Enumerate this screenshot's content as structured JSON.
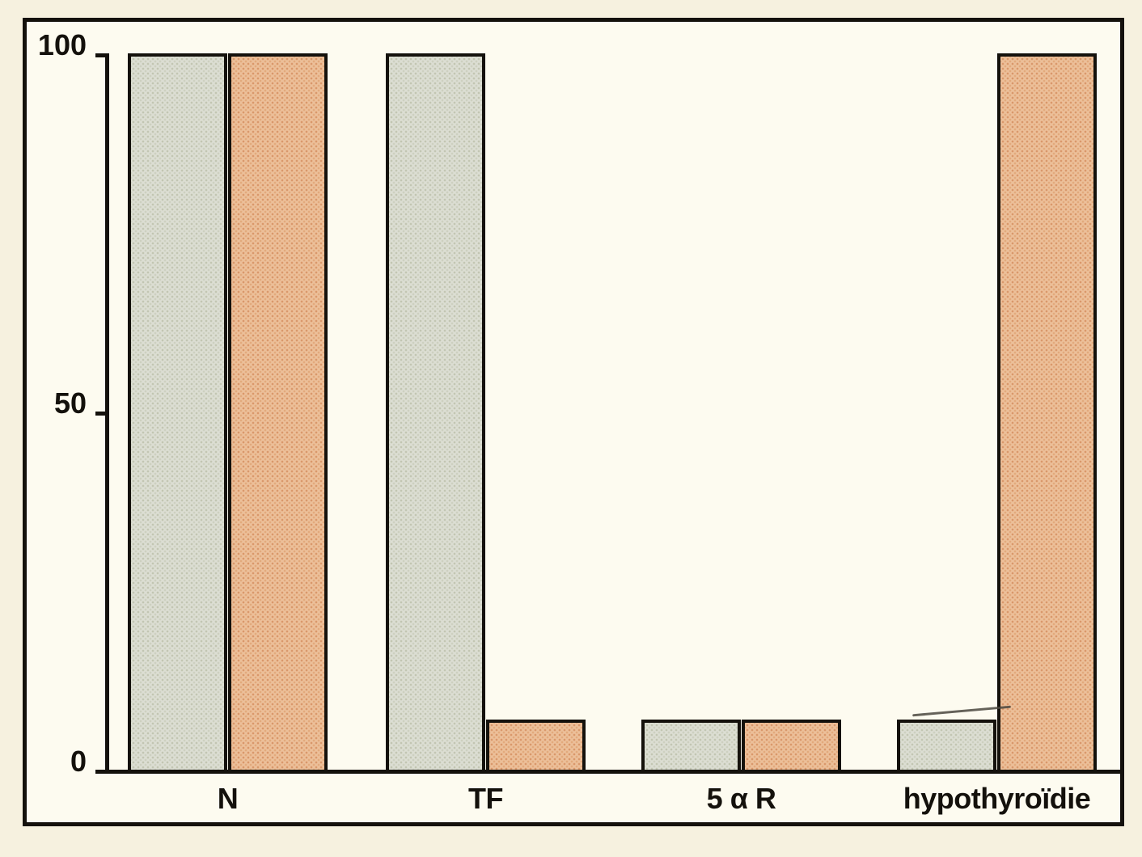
{
  "chart_data": {
    "type": "bar",
    "title": "",
    "xlabel": "",
    "ylabel": "",
    "categories": [
      "N",
      "TF",
      "5 α R",
      "hypothyroïdie"
    ],
    "series": [
      {
        "name": "gray",
        "color": "#dcded3",
        "values": [
          100,
          100,
          7,
          7
        ]
      },
      {
        "name": "orange",
        "color": "#ecc09a",
        "values": [
          100,
          7,
          7,
          100
        ]
      }
    ],
    "ylim": [
      0,
      100
    ],
    "yticks": [
      {
        "value": 100,
        "label": "100"
      },
      {
        "value": 50,
        "label": "50"
      },
      {
        "value": 0,
        "label": "0"
      }
    ],
    "grid": false,
    "legend": "none",
    "bar_outline_color": "#14110c"
  },
  "colors": {
    "page_background": "#f6f1df",
    "plot_background": "#fdfbf0",
    "frame_border": "#14110c",
    "series_gray": "#dcded3",
    "series_orange": "#ecc09a"
  }
}
